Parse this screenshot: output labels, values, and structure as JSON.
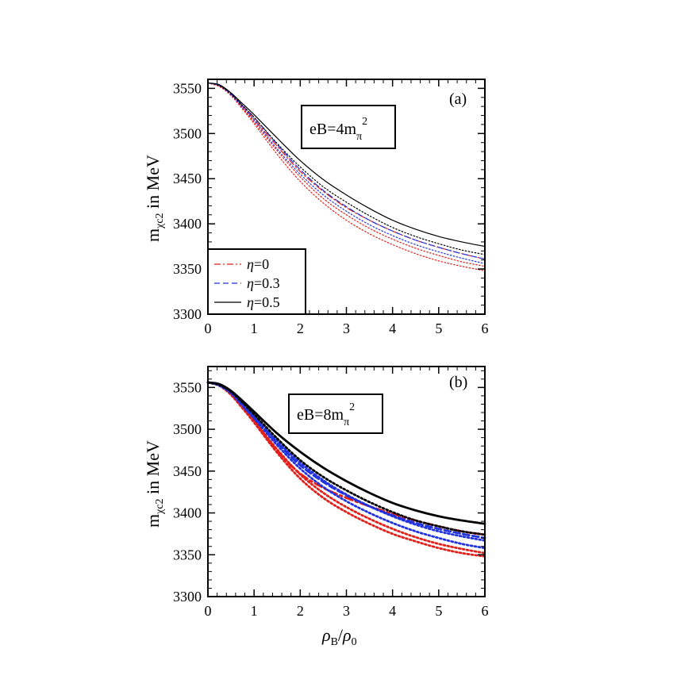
{
  "chart_data": [
    {
      "type": "line",
      "panel_label": "(a)",
      "annotation": "eB=4m",
      "annotation_sub": "π",
      "annotation_sup": "2",
      "ylabel_main": "m",
      "ylabel_sub": "χc2",
      "ylabel_rest": " in MeV",
      "xlabel": "",
      "xlim": [
        0,
        6
      ],
      "ylim": [
        3300,
        3560
      ],
      "xticks": [
        0,
        1,
        2,
        3,
        4,
        5,
        6
      ],
      "yticks": [
        3300,
        3350,
        3400,
        3450,
        3500,
        3550
      ],
      "legend": {
        "position": "bottom-left",
        "entries": [
          {
            "symbol": "η",
            "value": "=0",
            "color": "#e0201b",
            "dash": "8 3 2 3"
          },
          {
            "symbol": "η",
            "value": "=0.3",
            "color": "#2233dd",
            "dash": "7 4"
          },
          {
            "symbol": "η",
            "value": "=0.5",
            "color": "#000000",
            "dash": ""
          }
        ]
      },
      "series": [
        {
          "color": "#e0201b",
          "dash": "8 3 2 3",
          "width": 1.2,
          "x": [
            0,
            0.25,
            0.5,
            0.75,
            1,
            1.5,
            2,
            2.5,
            3,
            3.5,
            4,
            4.5,
            5,
            5.5,
            6
          ],
          "y": [
            3556,
            3553,
            3544,
            3530,
            3516,
            3486,
            3458,
            3436,
            3418,
            3404,
            3392,
            3382,
            3374,
            3367,
            3361
          ]
        },
        {
          "color": "#2233dd",
          "dash": "7 4",
          "width": 1.2,
          "x": [
            0,
            0.25,
            0.5,
            0.75,
            1,
            1.5,
            2,
            2.5,
            3,
            3.5,
            4,
            4.5,
            5,
            5.5,
            6
          ],
          "y": [
            3556,
            3553,
            3544,
            3531,
            3518,
            3488,
            3460,
            3437,
            3419,
            3404,
            3392,
            3382,
            3374,
            3367,
            3361
          ]
        },
        {
          "color": "#000000",
          "dash": "",
          "width": 1.2,
          "x": [
            0,
            0.25,
            0.5,
            0.75,
            1,
            1.5,
            2,
            2.5,
            3,
            3.5,
            4,
            4.5,
            5,
            5.5,
            6
          ],
          "y": [
            3556,
            3554,
            3545,
            3533,
            3521,
            3495,
            3470,
            3449,
            3432,
            3417,
            3404,
            3394,
            3386,
            3380,
            3375
          ]
        },
        {
          "color": "#e0201b",
          "dash": "1.5 2.5",
          "width": 1.2,
          "x": [
            0,
            0.25,
            0.5,
            0.75,
            1,
            1.5,
            2,
            2.5,
            3,
            3.5,
            4,
            4.5,
            5,
            5.5,
            6
          ],
          "y": [
            3556,
            3552,
            3542,
            3527,
            3511,
            3477,
            3447,
            3423,
            3404,
            3389,
            3377,
            3367,
            3359,
            3353,
            3348
          ]
        },
        {
          "color": "#e0201b",
          "dash": "1.5 2.5",
          "width": 1.2,
          "x": [
            0,
            0.25,
            0.5,
            0.75,
            1,
            1.5,
            2,
            2.5,
            3,
            3.5,
            4,
            4.5,
            5,
            5.5,
            6
          ],
          "y": [
            3556,
            3552,
            3543,
            3528,
            3513,
            3481,
            3452,
            3428,
            3410,
            3395,
            3383,
            3373,
            3365,
            3358,
            3353
          ]
        },
        {
          "color": "#2233dd",
          "dash": "1.5 2.5",
          "width": 1.2,
          "x": [
            0,
            0.25,
            0.5,
            0.75,
            1,
            1.5,
            2,
            2.5,
            3,
            3.5,
            4,
            4.5,
            5,
            5.5,
            6
          ],
          "y": [
            3556,
            3553,
            3543,
            3529,
            3515,
            3483,
            3455,
            3432,
            3414,
            3399,
            3387,
            3377,
            3369,
            3362,
            3356
          ]
        },
        {
          "color": "#000000",
          "dash": "1.5 2.5",
          "width": 1.2,
          "x": [
            0,
            0.25,
            0.5,
            0.75,
            1,
            1.5,
            2,
            2.5,
            3,
            3.5,
            4,
            4.5,
            5,
            5.5,
            6
          ],
          "y": [
            3556,
            3553,
            3544,
            3531,
            3518,
            3489,
            3463,
            3441,
            3424,
            3409,
            3396,
            3386,
            3378,
            3371,
            3366
          ]
        }
      ]
    },
    {
      "type": "line",
      "panel_label": "(b)",
      "annotation": "eB=8m",
      "annotation_sub": "π",
      "annotation_sup": "2",
      "ylabel_main": "m",
      "ylabel_sub": "χc2",
      "ylabel_rest": " in MeV",
      "xlabel_main": "ρ",
      "xlabel_sub": "B",
      "xlabel_slash": "/",
      "xlabel_main2": "ρ",
      "xlabel_sub2": "0",
      "xlim": [
        0,
        6
      ],
      "ylim": [
        3300,
        3575
      ],
      "xticks": [
        0,
        1,
        2,
        3,
        4,
        5,
        6
      ],
      "yticks": [
        3300,
        3350,
        3400,
        3450,
        3500,
        3550
      ],
      "series": [
        {
          "color": "#e0201b",
          "dash": "10 4 3 4",
          "width": 2.8,
          "x": [
            0,
            0.25,
            0.5,
            0.75,
            1,
            1.5,
            2,
            2.5,
            3,
            3.5,
            4,
            4.5,
            5,
            5.5,
            6
          ],
          "y": [
            3556,
            3553,
            3543,
            3528,
            3511,
            3474,
            3447,
            3430,
            3418,
            3408,
            3399,
            3391,
            3384,
            3378,
            3374
          ]
        },
        {
          "color": "#2233dd",
          "dash": "8 4",
          "width": 2.8,
          "x": [
            0,
            0.25,
            0.5,
            0.75,
            1,
            1.5,
            2,
            2.5,
            3,
            3.5,
            4,
            4.5,
            5,
            5.5,
            6
          ],
          "y": [
            3556,
            3553,
            3544,
            3530,
            3515,
            3484,
            3457,
            3437,
            3421,
            3408,
            3397,
            3388,
            3381,
            3375,
            3370
          ]
        },
        {
          "color": "#000000",
          "dash": "",
          "width": 2.8,
          "x": [
            0,
            0.25,
            0.5,
            0.75,
            1,
            1.5,
            2,
            2.5,
            3,
            3.5,
            4,
            4.5,
            5,
            5.5,
            6
          ],
          "y": [
            3556,
            3554,
            3546,
            3534,
            3521,
            3495,
            3473,
            3454,
            3438,
            3424,
            3412,
            3403,
            3396,
            3391,
            3387
          ]
        },
        {
          "color": "#e0201b",
          "dash": "2 3",
          "width": 2.8,
          "x": [
            0,
            0.25,
            0.5,
            0.75,
            1,
            1.5,
            2,
            2.5,
            3,
            3.5,
            4,
            4.5,
            5,
            5.5,
            6
          ],
          "y": [
            3556,
            3552,
            3541,
            3525,
            3508,
            3472,
            3441,
            3418,
            3401,
            3387,
            3375,
            3366,
            3358,
            3352,
            3348
          ]
        },
        {
          "color": "#e0201b",
          "dash": "2 3",
          "width": 2.8,
          "x": [
            0,
            0.25,
            0.5,
            0.75,
            1,
            1.5,
            2,
            2.5,
            3,
            3.5,
            4,
            4.5,
            5,
            5.5,
            6
          ],
          "y": [
            3556,
            3552,
            3542,
            3526,
            3510,
            3476,
            3446,
            3424,
            3407,
            3393,
            3381,
            3371,
            3363,
            3357,
            3352
          ]
        },
        {
          "color": "#2233dd",
          "dash": "2 3",
          "width": 2.8,
          "x": [
            0,
            0.25,
            0.5,
            0.75,
            1,
            1.5,
            2,
            2.5,
            3,
            3.5,
            4,
            4.5,
            5,
            5.5,
            6
          ],
          "y": [
            3556,
            3552,
            3543,
            3528,
            3513,
            3481,
            3453,
            3431,
            3414,
            3400,
            3388,
            3378,
            3370,
            3363,
            3358
          ]
        },
        {
          "color": "#2233dd",
          "dash": "2 3",
          "width": 2.8,
          "x": [
            0,
            0.25,
            0.5,
            0.75,
            1,
            1.5,
            2,
            2.5,
            3,
            3.5,
            4,
            4.5,
            5,
            5.5,
            6
          ],
          "y": [
            3556,
            3553,
            3544,
            3530,
            3516,
            3486,
            3460,
            3439,
            3422,
            3408,
            3396,
            3386,
            3378,
            3372,
            3367
          ]
        },
        {
          "color": "#000000",
          "dash": "2 3",
          "width": 2.8,
          "x": [
            0,
            0.25,
            0.5,
            0.75,
            1,
            1.5,
            2,
            2.5,
            3,
            3.5,
            4,
            4.5,
            5,
            5.5,
            6
          ],
          "y": [
            3556,
            3553,
            3545,
            3532,
            3518,
            3489,
            3463,
            3443,
            3427,
            3413,
            3401,
            3391,
            3384,
            3378,
            3374
          ]
        }
      ]
    }
  ]
}
